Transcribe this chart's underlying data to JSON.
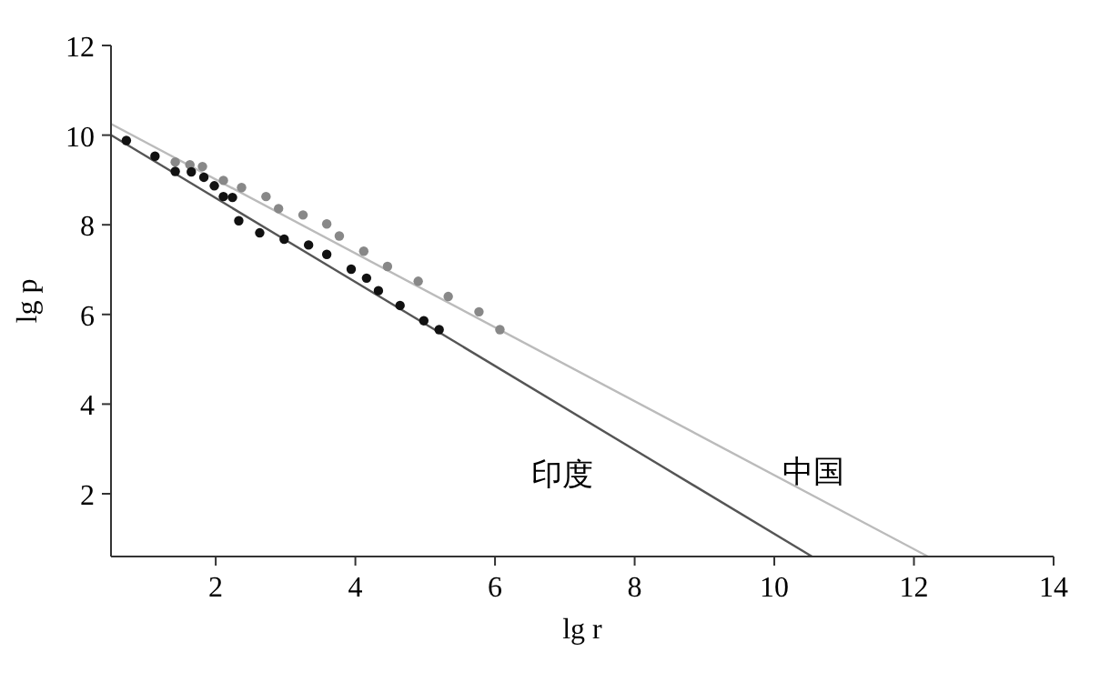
{
  "chart_data": {
    "type": "scatter",
    "xlabel": "lg r",
    "ylabel": "lg p",
    "xlim": [
      0.5,
      14
    ],
    "ylim": [
      0.6,
      12
    ],
    "xticks": [
      2,
      4,
      6,
      8,
      10,
      12,
      14
    ],
    "yticks": [
      2,
      4,
      6,
      8,
      10,
      12
    ],
    "series": [
      {
        "type": "line",
        "name": "印度",
        "color": "#555555",
        "x": [
          0.5,
          10.54
        ],
        "values": [
          10.0,
          0.6
        ]
      },
      {
        "type": "line",
        "name": "中国",
        "color": "#bbbbbb",
        "x": [
          0.5,
          12.2
        ],
        "values": [
          10.25,
          0.6
        ]
      },
      {
        "color": "#888888",
        "marker": "circle",
        "x": [
          1.42,
          1.63,
          1.81,
          2.11,
          2.37,
          2.72,
          2.9,
          3.25,
          3.59,
          3.77,
          4.12,
          4.46,
          4.9,
          5.33,
          5.77,
          6.07
        ],
        "values": [
          9.4,
          9.34,
          9.3,
          8.99,
          8.83,
          8.63,
          8.36,
          8.22,
          8.02,
          7.75,
          7.41,
          7.07,
          6.74,
          6.4,
          6.06,
          5.66
        ]
      },
      {
        "color": "#111111",
        "marker": "circle",
        "x": [
          0.72,
          1.13,
          1.42,
          1.65,
          1.83,
          1.98,
          2.11,
          2.24,
          2.33,
          2.63,
          2.98,
          3.33,
          3.59,
          3.94,
          4.16,
          4.33,
          4.64,
          4.98,
          5.2
        ],
        "values": [
          9.88,
          9.53,
          9.19,
          9.18,
          9.06,
          8.87,
          8.63,
          8.61,
          8.09,
          7.82,
          7.68,
          7.55,
          7.34,
          7.01,
          6.81,
          6.53,
          6.2,
          5.86,
          5.66
        ]
      }
    ]
  }
}
